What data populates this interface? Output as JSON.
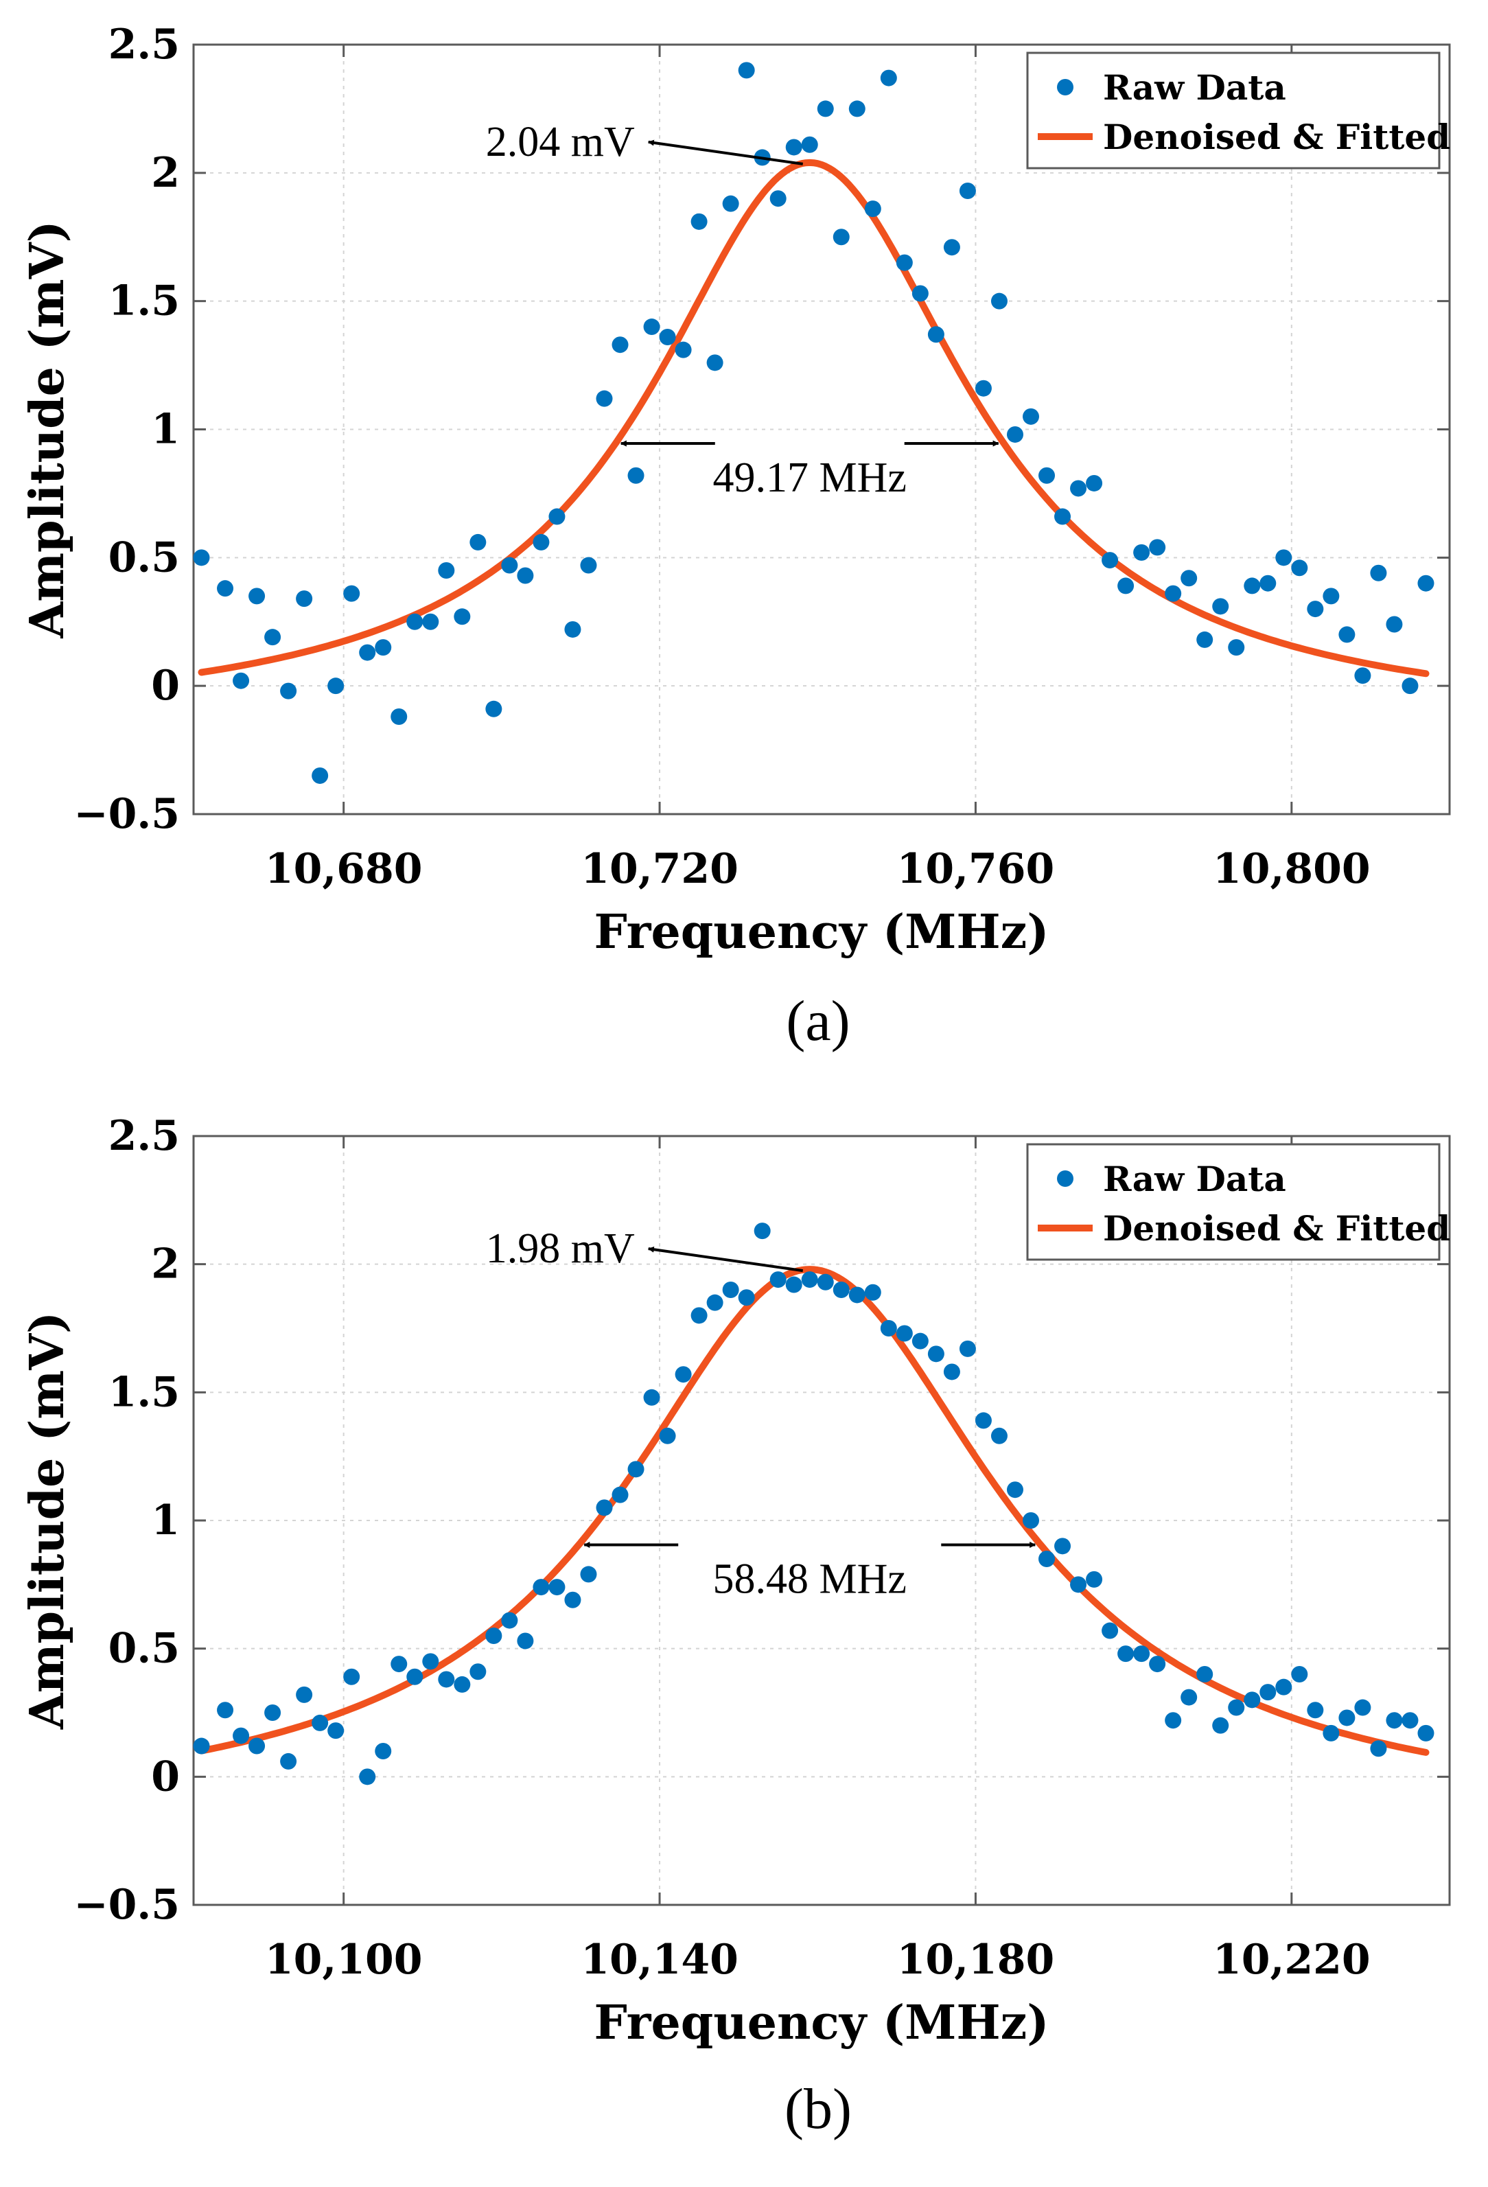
{
  "chart_data": [
    {
      "type": "scatter",
      "caption": "(a)",
      "xlabel": "Frequency (MHz)",
      "ylabel": "Amplitude (mV)",
      "xlim": [
        10661,
        10820
      ],
      "ylim": [
        -0.5,
        2.5
      ],
      "xticks": [
        10680,
        10720,
        10760,
        10800
      ],
      "xtick_labels": [
        "10,680",
        "10,720",
        "10,760",
        "10,800"
      ],
      "yticks": [
        -0.5,
        0,
        0.5,
        1,
        1.5,
        2,
        2.5
      ],
      "ytick_labels": [
        "−0.5",
        "0",
        "0.5",
        "1",
        "1.5",
        "2",
        "2.5"
      ],
      "grid": true,
      "legend_position": "top-right",
      "legend": [
        "Raw Data",
        "Denoised & Fitted"
      ],
      "series": [
        {
          "name": "Raw Data",
          "type": "scatter",
          "x": [
            10662,
            10665,
            10667,
            10669,
            10671,
            10673,
            10675,
            10677,
            10679,
            10681,
            10683,
            10685,
            10687,
            10689,
            10691,
            10693,
            10695,
            10697,
            10699,
            10701,
            10703,
            10705,
            10707,
            10709,
            10711,
            10713,
            10715,
            10717,
            10719,
            10721,
            10723,
            10725,
            10727,
            10729,
            10731,
            10733,
            10735,
            10737,
            10739,
            10741,
            10743,
            10745,
            10747,
            10749,
            10751,
            10753,
            10755,
            10757,
            10759,
            10761,
            10763,
            10765,
            10767,
            10769,
            10771,
            10773,
            10775,
            10777,
            10779,
            10781,
            10783,
            10785,
            10787,
            10789,
            10791,
            10793,
            10795,
            10797,
            10799,
            10801,
            10803,
            10805,
            10807,
            10809,
            10811,
            10813,
            10815,
            10817
          ],
          "y": [
            0.5,
            0.38,
            0.02,
            0.35,
            0.19,
            -0.02,
            0.34,
            -0.35,
            0.0,
            0.36,
            0.13,
            0.15,
            -0.12,
            0.25,
            0.25,
            0.45,
            0.27,
            0.56,
            -0.09,
            0.47,
            0.43,
            0.56,
            0.66,
            0.22,
            0.47,
            1.12,
            1.33,
            0.82,
            1.4,
            1.36,
            1.31,
            1.81,
            1.26,
            1.88,
            2.4,
            2.06,
            1.9,
            2.1,
            2.11,
            2.25,
            1.75,
            2.25,
            1.86,
            2.37,
            1.65,
            1.53,
            1.37,
            1.71,
            1.93,
            1.16,
            1.5,
            0.98,
            1.05,
            0.82,
            0.66,
            0.77,
            0.79,
            0.49,
            0.39,
            0.52,
            0.54,
            0.36,
            0.42,
            0.18,
            0.31,
            0.15,
            0.39,
            0.4,
            0.5,
            0.46,
            0.3,
            0.35,
            0.2,
            0.04,
            0.44,
            0.24,
            0.0,
            0.4
          ]
        },
        {
          "name": "Denoised & Fitted",
          "type": "line",
          "model": "lorentzian",
          "center": 10739,
          "fwhm": 49.17,
          "peak": 2.04,
          "offset": -0.15,
          "x_range": [
            10662,
            10817
          ]
        }
      ],
      "annotations": {
        "peak_label": "2.04 mV",
        "fwhm_label": "49.17 MHz"
      }
    },
    {
      "type": "scatter",
      "caption": "(b)",
      "xlabel": "Frequency (MHz)",
      "ylabel": "Amplitude (mV)",
      "xlim": [
        10081,
        10240
      ],
      "ylim": [
        -0.5,
        2.5
      ],
      "xticks": [
        10100,
        10140,
        10180,
        10220
      ],
      "xtick_labels": [
        "10,100",
        "10,140",
        "10,180",
        "10,220"
      ],
      "yticks": [
        -0.5,
        0,
        0.5,
        1,
        1.5,
        2,
        2.5
      ],
      "ytick_labels": [
        "−0.5",
        "0",
        "0.5",
        "1",
        "1.5",
        "2",
        "2.5"
      ],
      "grid": true,
      "legend_position": "top-right",
      "legend": [
        "Raw Data",
        "Denoised & Fitted"
      ],
      "series": [
        {
          "name": "Raw Data",
          "type": "scatter",
          "x": [
            10082,
            10085,
            10087,
            10089,
            10091,
            10093,
            10095,
            10097,
            10099,
            10101,
            10103,
            10105,
            10107,
            10109,
            10111,
            10113,
            10115,
            10117,
            10119,
            10121,
            10123,
            10125,
            10127,
            10129,
            10131,
            10133,
            10135,
            10137,
            10139,
            10141,
            10143,
            10145,
            10147,
            10149,
            10151,
            10153,
            10155,
            10157,
            10159,
            10161,
            10163,
            10165,
            10167,
            10169,
            10171,
            10173,
            10175,
            10177,
            10179,
            10181,
            10183,
            10185,
            10187,
            10189,
            10191,
            10193,
            10195,
            10197,
            10199,
            10201,
            10203,
            10205,
            10207,
            10209,
            10211,
            10213,
            10215,
            10217,
            10219,
            10221,
            10223,
            10225,
            10227,
            10229,
            10231,
            10233,
            10235,
            10237
          ],
          "y": [
            0.12,
            0.26,
            0.16,
            0.12,
            0.25,
            0.06,
            0.32,
            0.21,
            0.18,
            0.39,
            0.0,
            0.1,
            0.44,
            0.39,
            0.45,
            0.38,
            0.36,
            0.41,
            0.55,
            0.61,
            0.53,
            0.74,
            0.74,
            0.69,
            0.79,
            1.05,
            1.1,
            1.2,
            1.48,
            1.33,
            1.57,
            1.8,
            1.85,
            1.9,
            1.87,
            2.13,
            1.94,
            1.92,
            1.94,
            1.93,
            1.9,
            1.88,
            1.89,
            1.75,
            1.73,
            1.7,
            1.65,
            1.58,
            1.67,
            1.39,
            1.33,
            1.12,
            1.0,
            0.85,
            0.9,
            0.75,
            0.77,
            0.57,
            0.48,
            0.48,
            0.44,
            0.22,
            0.31,
            0.4,
            0.2,
            0.27,
            0.3,
            0.33,
            0.35,
            0.4,
            0.26,
            0.17,
            0.23,
            0.27,
            0.11,
            0.22,
            0.22,
            0.17
          ]
        },
        {
          "name": "Denoised & Fitted",
          "type": "line",
          "model": "lorentzian",
          "center": 10159,
          "fwhm": 58.48,
          "peak": 1.98,
          "offset": -0.17,
          "x_range": [
            10082,
            10237
          ]
        }
      ],
      "annotations": {
        "peak_label": "1.98 mV",
        "fwhm_label": "58.48 MHz"
      }
    }
  ]
}
